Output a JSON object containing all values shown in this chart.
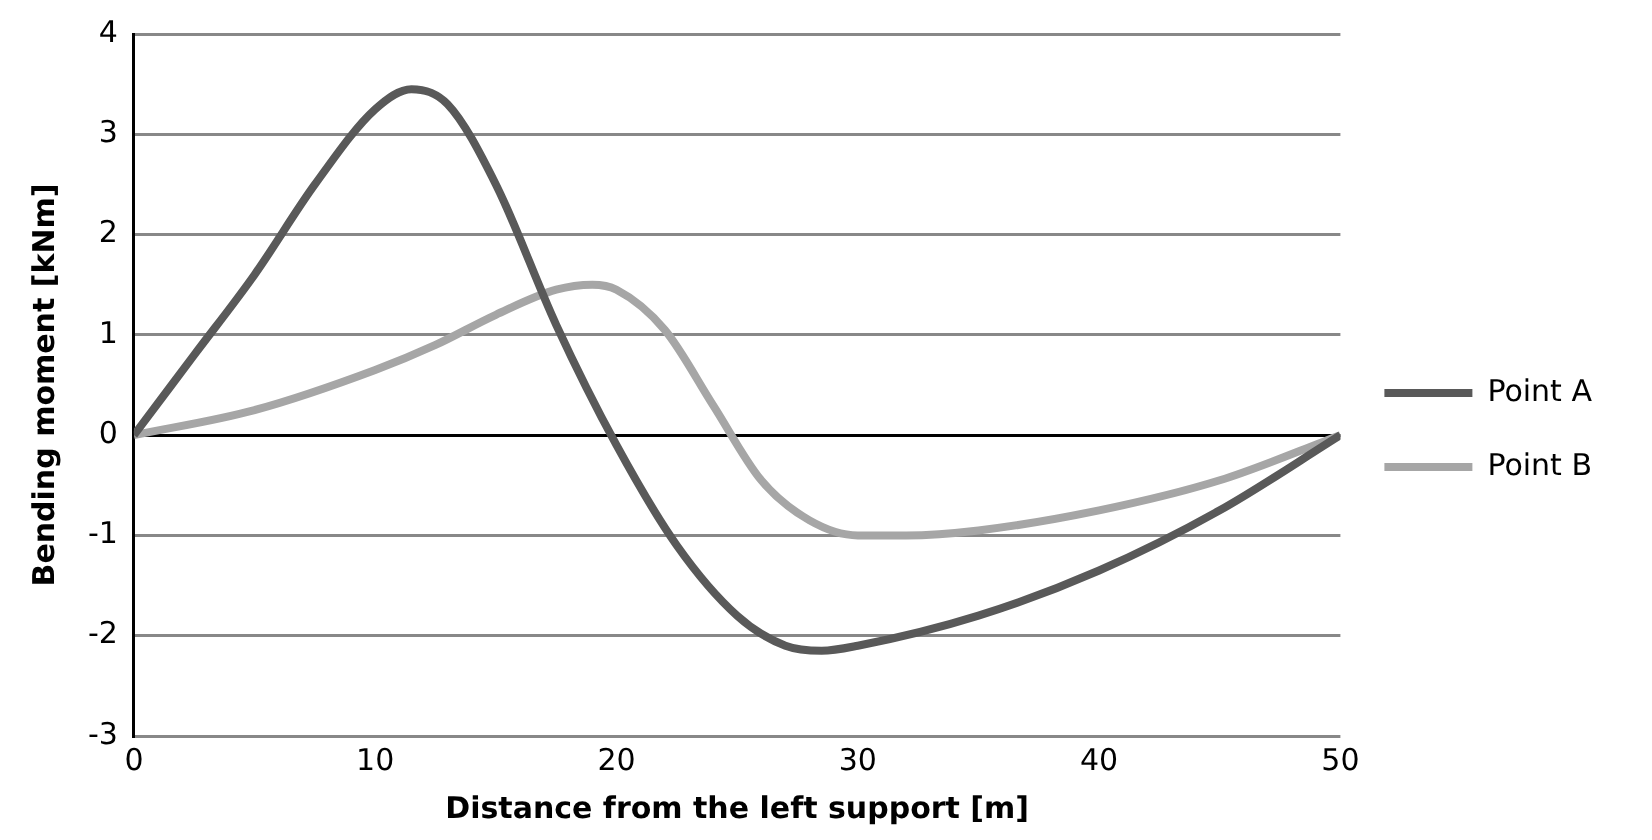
{
  "chart_data": {
    "type": "line",
    "xlabel": "Distance from the left support [m]",
    "ylabel": "Bending moment [kNm]",
    "xlim": [
      0,
      50
    ],
    "xticks": [
      0,
      10,
      20,
      30,
      40,
      50
    ],
    "ylim": [
      -3,
      4
    ],
    "yticks": [
      -3,
      -2,
      -1,
      0,
      1,
      2,
      3,
      4
    ],
    "grid": "y",
    "legend": "right",
    "marker": "none",
    "line_style": "solid",
    "series": [
      {
        "name": "Point A",
        "color": "#595959",
        "x": [
          0,
          2.5,
          5,
          7.5,
          10,
          11.5,
          13,
          15,
          17.5,
          20,
          22.5,
          25,
          27,
          28.5,
          30,
          35,
          40,
          45,
          50
        ],
        "values": [
          0,
          0.8,
          1.6,
          2.5,
          3.25,
          3.45,
          3.3,
          2.5,
          1.1,
          -0.1,
          -1.1,
          -1.8,
          -2.1,
          -2.15,
          -2.1,
          -1.8,
          -1.35,
          -0.75,
          0
        ]
      },
      {
        "name": "Point B",
        "color": "#a6a6a6",
        "x": [
          0,
          5,
          10,
          12.5,
          15,
          17.5,
          19,
          20,
          22,
          24,
          26,
          28,
          30,
          32,
          35,
          40,
          45,
          50
        ],
        "values": [
          0,
          0.25,
          0.65,
          0.9,
          1.2,
          1.45,
          1.5,
          1.45,
          1.05,
          0.3,
          -0.45,
          -0.85,
          -1.0,
          -1.0,
          -0.95,
          -0.75,
          -0.45,
          0
        ]
      }
    ]
  }
}
